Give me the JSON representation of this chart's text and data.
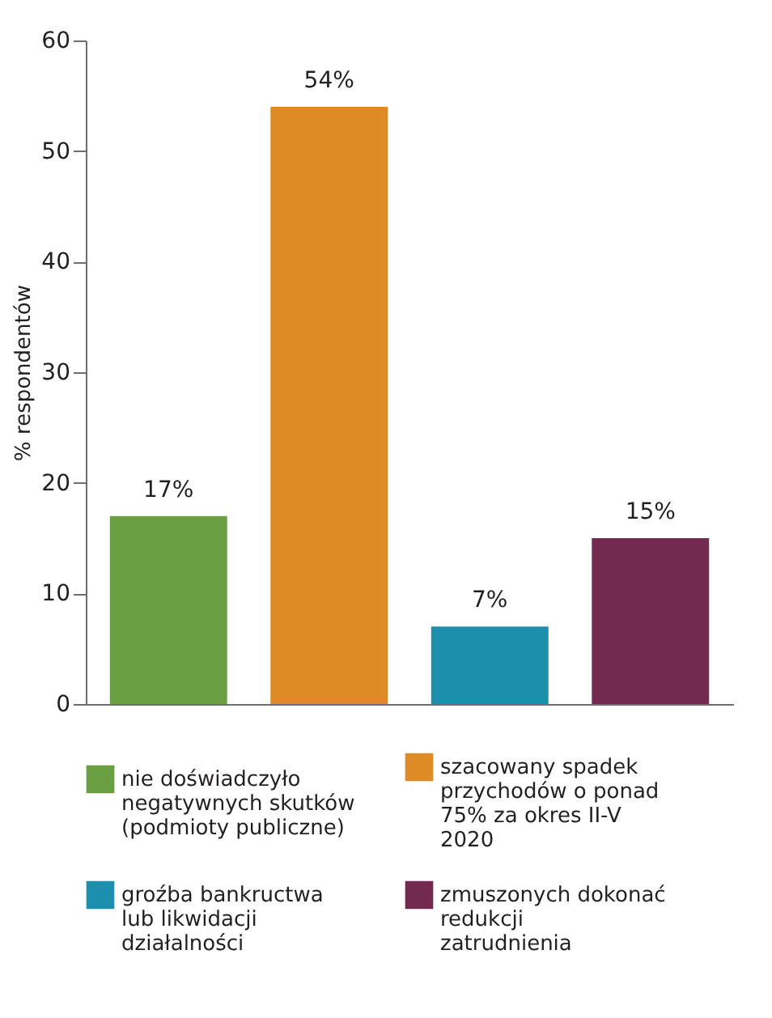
{
  "chart_data": {
    "type": "bar",
    "ylabel": "% respondentów",
    "stacked": true,
    "categories": [
      null,
      null,
      null,
      null
    ],
    "series": [
      {
        "name": "nie doświadczyło negatywnych skutków (podmioty publiczne)",
        "color": "#6a9f41",
        "values": [
          17,
          null,
          null,
          null
        ],
        "value_labels": [
          "17%",
          null,
          null,
          null
        ]
      },
      {
        "name": "szacowany spadek przychodów o ponad 75% za okres II-V 2020",
        "color": "#de8a27",
        "values": [
          null,
          54,
          null,
          null
        ],
        "value_labels": [
          null,
          "54%",
          null,
          null
        ]
      },
      {
        "name": "groźba bankructwa lub likwidacji działalności",
        "color": "#1b8fab",
        "values": [
          null,
          null,
          7,
          null
        ],
        "value_labels": [
          null,
          null,
          "7%",
          null
        ]
      },
      {
        "name": "zmuszonych dokonać redukcji zatrudnienia",
        "color": "#722a4f",
        "values": [
          null,
          null,
          null,
          15
        ],
        "value_labels": [
          null,
          null,
          null,
          "15%"
        ]
      }
    ],
    "ylim": [
      0,
      60
    ],
    "yticks": [
      0,
      10,
      20,
      30,
      40,
      50,
      60
    ],
    "legend": "bottom",
    "tick_labels": "y"
  }
}
